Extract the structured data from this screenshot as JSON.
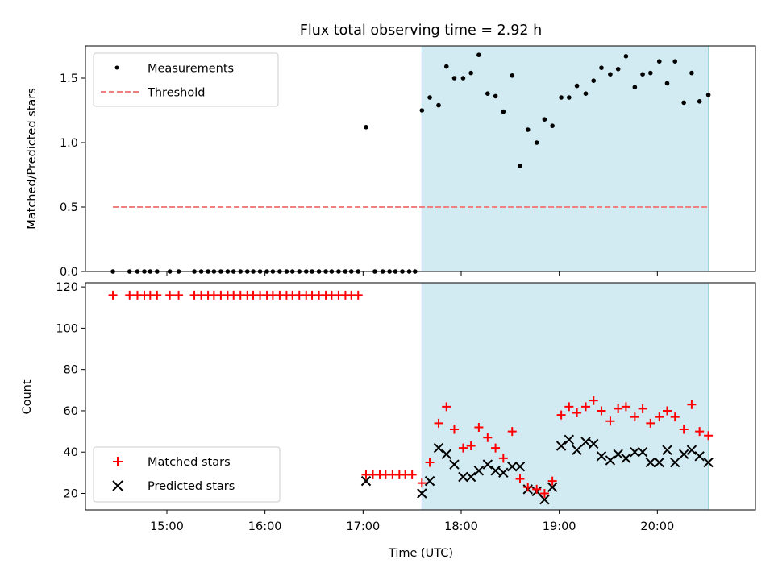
{
  "figure": {
    "title": "Flux total observing time = 2.92 h",
    "xlabel": "Time (UTC)"
  },
  "chart_data": [
    {
      "type": "scatter",
      "panel": "top",
      "title": "Flux total observing time = 2.92 h",
      "ylabel": "Matched/Predicted stars",
      "xlim": [
        14.17,
        21.0
      ],
      "ylim": [
        0,
        1.75
      ],
      "yticks": [
        0.0,
        0.5,
        1.0,
        1.5
      ],
      "ytick_labels": [
        "0.0",
        "0.5",
        "1.0",
        "1.5"
      ],
      "xticks": [
        15,
        16,
        17,
        18,
        19,
        20
      ],
      "xtick_labels": [],
      "shaded_region": {
        "x": [
          17.6,
          20.52
        ],
        "color": "#add8e6"
      },
      "legend": {
        "position": "top-left",
        "entries": [
          "Measurements",
          "Threshold"
        ]
      },
      "series": [
        {
          "name": "Measurements",
          "marker": "dot",
          "color": "#000000",
          "x": [
            14.45,
            14.62,
            14.7,
            14.77,
            14.83,
            14.9,
            15.03,
            15.12,
            15.28,
            15.35,
            15.42,
            15.48,
            15.55,
            15.62,
            15.68,
            15.75,
            15.82,
            15.88,
            15.95,
            16.02,
            16.08,
            16.15,
            16.22,
            16.28,
            16.35,
            16.42,
            16.48,
            16.55,
            16.62,
            16.68,
            16.75,
            16.82,
            16.88,
            16.95,
            17.03,
            17.12,
            17.2,
            17.27,
            17.33,
            17.4,
            17.47,
            17.53,
            17.6,
            17.68,
            17.77,
            17.85,
            17.93,
            18.02,
            18.1,
            18.18,
            18.27,
            18.35,
            18.43,
            18.52,
            18.6,
            18.68,
            18.77,
            18.85,
            18.93,
            19.02,
            19.1,
            19.18,
            19.27,
            19.35,
            19.43,
            19.52,
            19.6,
            19.68,
            19.77,
            19.85,
            19.93,
            20.02,
            20.1,
            20.18,
            20.27,
            20.35,
            20.43,
            20.52
          ],
          "y": [
            0,
            0,
            0,
            0,
            0,
            0,
            0,
            0,
            0,
            0,
            0,
            0,
            0,
            0,
            0,
            0,
            0,
            0,
            0,
            0,
            0,
            0,
            0,
            0,
            0,
            0,
            0,
            0,
            0,
            0,
            0,
            0,
            0,
            0,
            1.12,
            0,
            0,
            0,
            0,
            0,
            0,
            0,
            1.25,
            1.35,
            1.29,
            1.59,
            1.5,
            1.5,
            1.54,
            1.68,
            1.38,
            1.36,
            1.24,
            1.52,
            0.82,
            1.1,
            1.0,
            1.18,
            1.13,
            1.35,
            1.35,
            1.44,
            1.38,
            1.48,
            1.58,
            1.53,
            1.57,
            1.67,
            1.43,
            1.53,
            1.54,
            1.63,
            1.46,
            1.63,
            1.31,
            1.54,
            1.32,
            1.37
          ]
        },
        {
          "name": "Threshold",
          "style": "dashed",
          "color": "#f08080",
          "x": [
            14.45,
            20.52
          ],
          "y": [
            0.5,
            0.5
          ]
        }
      ]
    },
    {
      "type": "scatter",
      "panel": "bottom",
      "ylabel": "Count",
      "xlabel": "Time (UTC)",
      "xlim": [
        14.17,
        21.0
      ],
      "ylim": [
        12,
        122
      ],
      "yticks": [
        20,
        40,
        60,
        80,
        100,
        120
      ],
      "ytick_labels": [
        "20",
        "40",
        "60",
        "80",
        "100",
        "120"
      ],
      "xticks": [
        15,
        16,
        17,
        18,
        19,
        20
      ],
      "xtick_labels": [
        "15:00",
        "16:00",
        "17:00",
        "18:00",
        "19:00",
        "20:00"
      ],
      "shaded_region": {
        "x": [
          17.6,
          20.52
        ],
        "color": "#add8e6"
      },
      "legend": {
        "position": "bottom-left",
        "entries": [
          "Matched stars",
          "Predicted stars"
        ]
      },
      "series": [
        {
          "name": "Matched stars",
          "marker": "plus",
          "color": "#ff0000",
          "x": [
            14.45,
            14.62,
            14.7,
            14.77,
            14.83,
            14.9,
            15.03,
            15.12,
            15.28,
            15.35,
            15.42,
            15.48,
            15.55,
            15.62,
            15.68,
            15.75,
            15.82,
            15.88,
            15.95,
            16.02,
            16.08,
            16.15,
            16.22,
            16.28,
            16.35,
            16.42,
            16.48,
            16.55,
            16.62,
            16.68,
            16.75,
            16.82,
            16.88,
            16.95,
            17.03,
            17.1,
            17.17,
            17.23,
            17.3,
            17.37,
            17.43,
            17.5,
            17.6,
            17.68,
            17.77,
            17.85,
            17.93,
            18.02,
            18.1,
            18.18,
            18.27,
            18.35,
            18.43,
            18.52,
            18.6,
            18.68,
            18.77,
            18.85,
            18.93,
            19.02,
            19.1,
            19.18,
            19.27,
            19.35,
            19.43,
            19.52,
            19.6,
            19.68,
            19.77,
            19.85,
            19.93,
            20.02,
            20.1,
            20.18,
            20.27,
            20.35,
            20.43,
            20.52
          ],
          "y": [
            116,
            116,
            116,
            116,
            116,
            116,
            116,
            116,
            116,
            116,
            116,
            116,
            116,
            116,
            116,
            116,
            116,
            116,
            116,
            116,
            116,
            116,
            116,
            116,
            116,
            116,
            116,
            116,
            116,
            116,
            116,
            116,
            116,
            116,
            29,
            29,
            29,
            29,
            29,
            29,
            29,
            29,
            25,
            35,
            54,
            62,
            51,
            42,
            43,
            52,
            47,
            42,
            37,
            50,
            27,
            23,
            22,
            20,
            26,
            58,
            62,
            59,
            62,
            65,
            60,
            55,
            61,
            62,
            57,
            61,
            54,
            57,
            60,
            57,
            51,
            63,
            50,
            48
          ]
        },
        {
          "name": "Predicted stars",
          "marker": "x",
          "color": "#000000",
          "x": [
            17.03,
            17.6,
            17.68,
            17.77,
            17.85,
            17.93,
            18.02,
            18.1,
            18.18,
            18.27,
            18.35,
            18.43,
            18.52,
            18.6,
            18.68,
            18.77,
            18.85,
            18.93,
            19.02,
            19.1,
            19.18,
            19.27,
            19.35,
            19.43,
            19.52,
            19.6,
            19.68,
            19.77,
            19.85,
            19.93,
            20.02,
            20.1,
            20.18,
            20.27,
            20.35,
            20.43,
            20.52
          ],
          "y": [
            26,
            20,
            26,
            42,
            39,
            34,
            28,
            28,
            31,
            34,
            31,
            30,
            33,
            33,
            22,
            21,
            17,
            23,
            43,
            46,
            41,
            45,
            44,
            38,
            36,
            39,
            37,
            40,
            40,
            35,
            35,
            41,
            35,
            39,
            41,
            38,
            35
          ]
        }
      ]
    }
  ]
}
